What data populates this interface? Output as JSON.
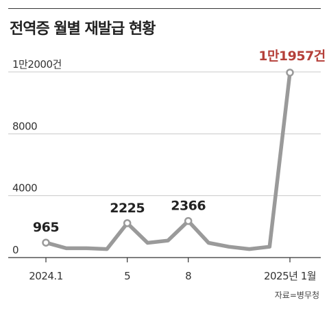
{
  "title": "전역증 월별 재발급 현황",
  "source": "자료=병무청",
  "colors": {
    "line": "#9a9a9a",
    "marker_fill": "#ffffff",
    "grid": "#c8c8c8",
    "axis": "#333333",
    "label": "#222222",
    "highlight": "#b5403a"
  },
  "chart_data": {
    "type": "line",
    "title": "전역증 월별 재발급 현황",
    "xlabel": "",
    "ylabel": "",
    "x": [
      "2024.1",
      "2024.2",
      "2024.3",
      "2024.4",
      "2024.5",
      "2024.6",
      "2024.7",
      "2024.8",
      "2024.9",
      "2024.10",
      "2024.11",
      "2024.12",
      "2025.1"
    ],
    "series": [
      {
        "values": [
          965,
          600,
          600,
          550,
          2225,
          950,
          1100,
          2366,
          950,
          700,
          550,
          700,
          11957
        ]
      }
    ],
    "ylim": [
      0,
      12000
    ],
    "yticks": [
      {
        "value": 0,
        "label": "0"
      },
      {
        "value": 4000,
        "label": "4000"
      },
      {
        "value": 8000,
        "label": "8000"
      },
      {
        "value": 12000,
        "label": "1만2000건"
      }
    ],
    "xticks": [
      {
        "index": 0,
        "label": "2024.1"
      },
      {
        "index": 4,
        "label": "5"
      },
      {
        "index": 7,
        "label": "8"
      },
      {
        "index": 12,
        "label": "2025년 1월"
      }
    ],
    "markers": [
      0,
      4,
      7,
      12
    ],
    "data_labels": [
      {
        "index": 0,
        "text": "965",
        "highlight": false
      },
      {
        "index": 4,
        "text": "2225",
        "highlight": false
      },
      {
        "index": 7,
        "text": "2366",
        "highlight": false
      },
      {
        "index": 12,
        "text": "1만1957건",
        "highlight": true
      }
    ],
    "grid": true
  }
}
